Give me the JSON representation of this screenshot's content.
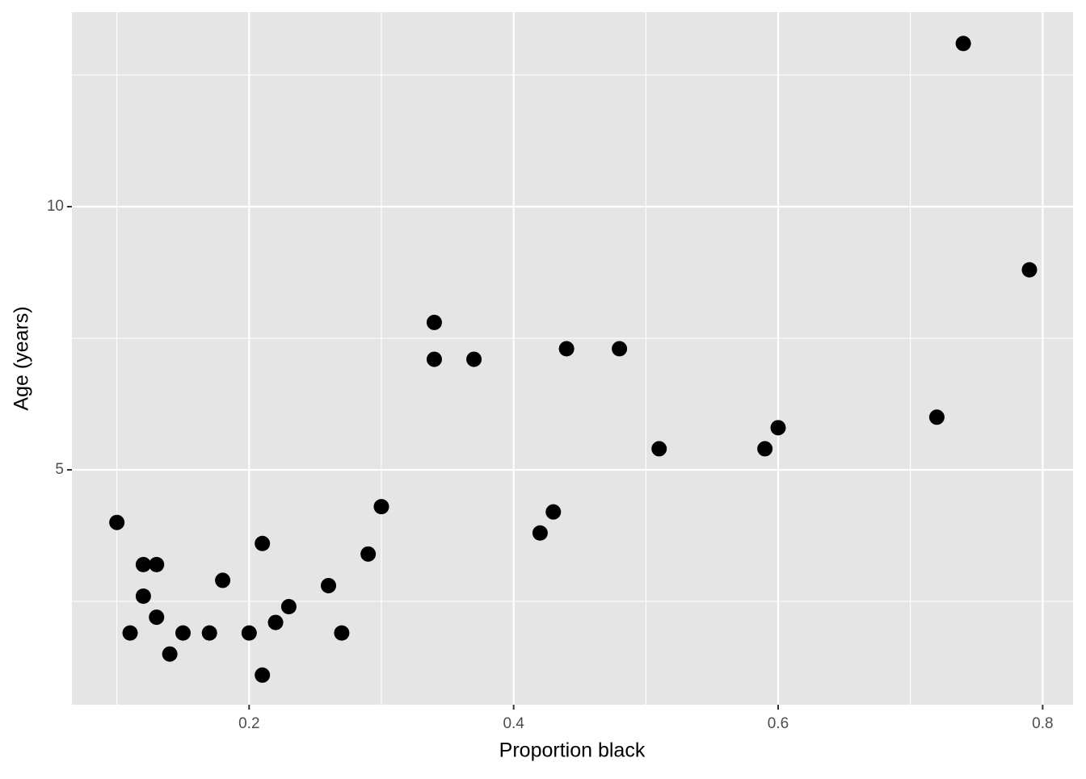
{
  "chart_data": {
    "type": "scatter",
    "xlabel": "Proportion black",
    "ylabel": "Age (years)",
    "x": [
      0.1,
      0.11,
      0.12,
      0.13,
      0.12,
      0.13,
      0.14,
      0.15,
      0.17,
      0.18,
      0.2,
      0.21,
      0.21,
      0.22,
      0.23,
      0.26,
      0.27,
      0.29,
      0.3,
      0.34,
      0.34,
      0.37,
      0.42,
      0.43,
      0.44,
      0.48,
      0.51,
      0.59,
      0.6,
      0.72,
      0.74,
      0.79
    ],
    "values": [
      4.0,
      1.9,
      3.2,
      3.2,
      2.6,
      2.2,
      1.5,
      1.9,
      1.9,
      2.9,
      1.9,
      3.6,
      1.1,
      2.1,
      2.4,
      2.8,
      1.9,
      3.4,
      4.3,
      7.8,
      7.1,
      7.1,
      3.8,
      4.2,
      7.3,
      7.3,
      5.4,
      5.4,
      5.8,
      6.0,
      13.1,
      8.8
    ],
    "color": "#000000",
    "xlim": [
      0.066,
      0.823
    ],
    "ylim": [
      0.537,
      13.696
    ],
    "xticks": [
      0.2,
      0.4,
      0.6,
      0.8
    ],
    "yticks": [
      5,
      10
    ],
    "xminor": [
      0.1,
      0.3,
      0.5,
      0.7
    ],
    "yminor": [
      2.5,
      7.5,
      12.5
    ],
    "grid": true
  }
}
